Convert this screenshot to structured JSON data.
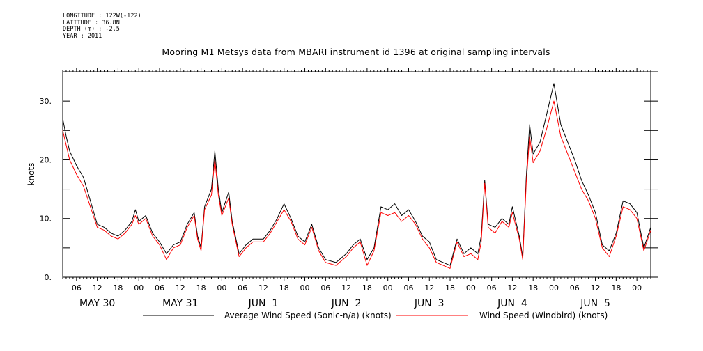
{
  "meta": {
    "longitude": "LONGITUDE : 122W(-122)",
    "latitude": "LATITUDE : 36.8N",
    "depth": "DEPTH (m) : -2.5",
    "year": "YEAR : 2011"
  },
  "chart_data": {
    "type": "line",
    "title": "Mooring M1 Metsys data from MBARI instrument id 1396 at original sampling intervals",
    "ylabel": "knots",
    "xlabel": "",
    "ylim": [
      0,
      35
    ],
    "xlim": [
      "2011-05-30 02:00",
      "2011-06-06 04:00"
    ],
    "yticks": [
      0,
      10,
      20,
      30
    ],
    "ytick_labels": [
      "0.",
      "10.",
      "20.",
      "30."
    ],
    "hour_ticks": [
      {
        "t": "2011-05-30 06:00",
        "label": "06"
      },
      {
        "t": "2011-05-30 12:00",
        "label": "12"
      },
      {
        "t": "2011-05-30 18:00",
        "label": "18"
      },
      {
        "t": "2011-05-31 00:00",
        "label": "00"
      },
      {
        "t": "2011-05-31 06:00",
        "label": "06"
      },
      {
        "t": "2011-05-31 12:00",
        "label": "12"
      },
      {
        "t": "2011-05-31 18:00",
        "label": "18"
      },
      {
        "t": "2011-06-01 00:00",
        "label": "00"
      },
      {
        "t": "2011-06-01 06:00",
        "label": "06"
      },
      {
        "t": "2011-06-01 12:00",
        "label": "12"
      },
      {
        "t": "2011-06-01 18:00",
        "label": "18"
      },
      {
        "t": "2011-06-02 00:00",
        "label": "00"
      },
      {
        "t": "2011-06-02 06:00",
        "label": "06"
      },
      {
        "t": "2011-06-02 12:00",
        "label": "12"
      },
      {
        "t": "2011-06-02 18:00",
        "label": "18"
      },
      {
        "t": "2011-06-03 00:00",
        "label": "00"
      },
      {
        "t": "2011-06-03 06:00",
        "label": "06"
      },
      {
        "t": "2011-06-03 12:00",
        "label": "12"
      },
      {
        "t": "2011-06-03 18:00",
        "label": "18"
      },
      {
        "t": "2011-06-04 00:00",
        "label": "00"
      },
      {
        "t": "2011-06-04 06:00",
        "label": "06"
      },
      {
        "t": "2011-06-04 12:00",
        "label": "12"
      },
      {
        "t": "2011-06-04 18:00",
        "label": "18"
      },
      {
        "t": "2011-06-05 00:00",
        "label": "00"
      },
      {
        "t": "2011-06-05 06:00",
        "label": "06"
      },
      {
        "t": "2011-06-05 12:00",
        "label": "12"
      },
      {
        "t": "2011-06-05 18:00",
        "label": "18"
      },
      {
        "t": "2011-06-06 00:00",
        "label": "00"
      }
    ],
    "day_labels": [
      {
        "t": "2011-05-30 12:00",
        "label": "MAY 30"
      },
      {
        "t": "2011-05-31 12:00",
        "label": "MAY 31"
      },
      {
        "t": "2011-06-01 12:00",
        "label": "JUN  1"
      },
      {
        "t": "2011-06-02 12:00",
        "label": "JUN  2"
      },
      {
        "t": "2011-06-03 12:00",
        "label": "JUN  3"
      },
      {
        "t": "2011-06-04 12:00",
        "label": "JUN  4"
      },
      {
        "t": "2011-06-05 12:00",
        "label": "JUN  5"
      }
    ],
    "grid": false,
    "legend": "bottom",
    "series": [
      {
        "name": "Average Wind Speed (Sonic-n/a) (knots)",
        "color": "#000000",
        "points": [
          [
            "2011-05-30 02:00",
            27.0
          ],
          [
            "2011-05-30 03:00",
            24.0
          ],
          [
            "2011-05-30 04:00",
            21.5
          ],
          [
            "2011-05-30 06:00",
            19.0
          ],
          [
            "2011-05-30 08:00",
            17.0
          ],
          [
            "2011-05-30 10:00",
            13.0
          ],
          [
            "2011-05-30 12:00",
            9.0
          ],
          [
            "2011-05-30 14:00",
            8.5
          ],
          [
            "2011-05-30 16:00",
            7.5
          ],
          [
            "2011-05-30 18:00",
            7.0
          ],
          [
            "2011-05-30 20:00",
            8.0
          ],
          [
            "2011-05-30 22:00",
            9.5
          ],
          [
            "2011-05-30 23:00",
            11.5
          ],
          [
            "2011-05-31 00:00",
            9.5
          ],
          [
            "2011-05-31 02:00",
            10.5
          ],
          [
            "2011-05-31 04:00",
            7.5
          ],
          [
            "2011-05-31 06:00",
            6.0
          ],
          [
            "2011-05-31 08:00",
            4.0
          ],
          [
            "2011-05-31 10:00",
            5.5
          ],
          [
            "2011-05-31 12:00",
            6.0
          ],
          [
            "2011-05-31 14:00",
            9.0
          ],
          [
            "2011-05-31 16:00",
            11.0
          ],
          [
            "2011-05-31 17:00",
            7.0
          ],
          [
            "2011-05-31 18:00",
            5.0
          ],
          [
            "2011-05-31 19:00",
            12.0
          ],
          [
            "2011-05-31 21:00",
            15.0
          ],
          [
            "2011-05-31 22:00",
            21.5
          ],
          [
            "2011-05-31 23:00",
            15.0
          ],
          [
            "2011-06-01 00:00",
            11.0
          ],
          [
            "2011-06-01 02:00",
            14.5
          ],
          [
            "2011-06-01 03:00",
            9.5
          ],
          [
            "2011-06-01 05:00",
            4.0
          ],
          [
            "2011-06-01 07:00",
            5.5
          ],
          [
            "2011-06-01 09:00",
            6.5
          ],
          [
            "2011-06-01 12:00",
            6.5
          ],
          [
            "2011-06-01 14:00",
            8.0
          ],
          [
            "2011-06-01 16:00",
            10.0
          ],
          [
            "2011-06-01 18:00",
            12.5
          ],
          [
            "2011-06-01 20:00",
            10.0
          ],
          [
            "2011-06-01 22:00",
            7.0
          ],
          [
            "2011-06-02 00:00",
            6.0
          ],
          [
            "2011-06-02 02:00",
            9.0
          ],
          [
            "2011-06-02 04:00",
            5.0
          ],
          [
            "2011-06-02 06:00",
            3.0
          ],
          [
            "2011-06-02 09:00",
            2.5
          ],
          [
            "2011-06-02 12:00",
            4.0
          ],
          [
            "2011-06-02 14:00",
            5.5
          ],
          [
            "2011-06-02 16:00",
            6.5
          ],
          [
            "2011-06-02 18:00",
            3.0
          ],
          [
            "2011-06-02 20:00",
            5.0
          ],
          [
            "2011-06-02 22:00",
            12.0
          ],
          [
            "2011-06-03 00:00",
            11.5
          ],
          [
            "2011-06-03 02:00",
            12.5
          ],
          [
            "2011-06-03 04:00",
            10.5
          ],
          [
            "2011-06-03 06:00",
            11.5
          ],
          [
            "2011-06-03 08:00",
            9.5
          ],
          [
            "2011-06-03 10:00",
            7.0
          ],
          [
            "2011-06-03 12:00",
            6.0
          ],
          [
            "2011-06-03 14:00",
            3.0
          ],
          [
            "2011-06-03 16:00",
            2.5
          ],
          [
            "2011-06-03 18:00",
            2.0
          ],
          [
            "2011-06-03 20:00",
            6.5
          ],
          [
            "2011-06-03 22:00",
            4.0
          ],
          [
            "2011-06-04 00:00",
            5.0
          ],
          [
            "2011-06-04 02:00",
            4.0
          ],
          [
            "2011-06-04 03:00",
            7.0
          ],
          [
            "2011-06-04 04:00",
            16.5
          ],
          [
            "2011-06-04 05:00",
            9.0
          ],
          [
            "2011-06-04 07:00",
            8.5
          ],
          [
            "2011-06-04 09:00",
            10.0
          ],
          [
            "2011-06-04 11:00",
            9.0
          ],
          [
            "2011-06-04 12:00",
            12.0
          ],
          [
            "2011-06-04 14:00",
            7.0
          ],
          [
            "2011-06-04 15:00",
            3.5
          ],
          [
            "2011-06-04 16:00",
            17.0
          ],
          [
            "2011-06-04 17:00",
            26.0
          ],
          [
            "2011-06-04 18:00",
            21.0
          ],
          [
            "2011-06-04 20:00",
            23.0
          ],
          [
            "2011-06-04 22:00",
            28.0
          ],
          [
            "2011-06-05 00:00",
            33.0
          ],
          [
            "2011-06-05 02:00",
            26.0
          ],
          [
            "2011-06-05 04:00",
            23.0
          ],
          [
            "2011-06-05 06:00",
            20.0
          ],
          [
            "2011-06-05 08:00",
            16.5
          ],
          [
            "2011-06-05 10:00",
            14.0
          ],
          [
            "2011-06-05 12:00",
            11.0
          ],
          [
            "2011-06-05 14:00",
            5.5
          ],
          [
            "2011-06-05 16:00",
            4.5
          ],
          [
            "2011-06-05 18:00",
            7.5
          ],
          [
            "2011-06-05 20:00",
            13.0
          ],
          [
            "2011-06-05 22:00",
            12.5
          ],
          [
            "2011-06-06 00:00",
            11.0
          ],
          [
            "2011-06-06 02:00",
            5.0
          ],
          [
            "2011-06-06 04:00",
            8.5
          ]
        ]
      },
      {
        "name": "Wind Speed (Windbird) (knots)",
        "color": "#ff0000",
        "points": [
          [
            "2011-05-30 02:00",
            25.0
          ],
          [
            "2011-05-30 03:00",
            22.5
          ],
          [
            "2011-05-30 04:00",
            20.0
          ],
          [
            "2011-05-30 06:00",
            17.5
          ],
          [
            "2011-05-30 08:00",
            15.5
          ],
          [
            "2011-05-30 10:00",
            12.0
          ],
          [
            "2011-05-30 12:00",
            8.5
          ],
          [
            "2011-05-30 14:00",
            8.0
          ],
          [
            "2011-05-30 16:00",
            7.0
          ],
          [
            "2011-05-30 18:00",
            6.5
          ],
          [
            "2011-05-30 20:00",
            7.5
          ],
          [
            "2011-05-30 22:00",
            9.0
          ],
          [
            "2011-05-30 23:00",
            10.5
          ],
          [
            "2011-05-31 00:00",
            9.0
          ],
          [
            "2011-05-31 02:00",
            10.0
          ],
          [
            "2011-05-31 04:00",
            7.0
          ],
          [
            "2011-05-31 06:00",
            5.5
          ],
          [
            "2011-05-31 08:00",
            3.0
          ],
          [
            "2011-05-31 10:00",
            5.0
          ],
          [
            "2011-05-31 12:00",
            5.5
          ],
          [
            "2011-05-31 14:00",
            8.5
          ],
          [
            "2011-05-31 16:00",
            10.5
          ],
          [
            "2011-05-31 17:00",
            6.5
          ],
          [
            "2011-05-31 18:00",
            4.5
          ],
          [
            "2011-05-31 19:00",
            11.5
          ],
          [
            "2011-05-31 21:00",
            14.0
          ],
          [
            "2011-05-31 22:00",
            20.0
          ],
          [
            "2011-05-31 23:00",
            14.0
          ],
          [
            "2011-06-01 00:00",
            10.5
          ],
          [
            "2011-06-01 02:00",
            13.5
          ],
          [
            "2011-06-01 03:00",
            9.0
          ],
          [
            "2011-06-01 05:00",
            3.5
          ],
          [
            "2011-06-01 07:00",
            5.0
          ],
          [
            "2011-06-01 09:00",
            6.0
          ],
          [
            "2011-06-01 12:00",
            6.0
          ],
          [
            "2011-06-01 14:00",
            7.5
          ],
          [
            "2011-06-01 16:00",
            9.5
          ],
          [
            "2011-06-01 18:00",
            11.5
          ],
          [
            "2011-06-01 20:00",
            9.5
          ],
          [
            "2011-06-01 22:00",
            6.5
          ],
          [
            "2011-06-02 00:00",
            5.5
          ],
          [
            "2011-06-02 02:00",
            8.5
          ],
          [
            "2011-06-02 04:00",
            4.5
          ],
          [
            "2011-06-02 06:00",
            2.5
          ],
          [
            "2011-06-02 09:00",
            2.0
          ],
          [
            "2011-06-02 12:00",
            3.5
          ],
          [
            "2011-06-02 14:00",
            5.0
          ],
          [
            "2011-06-02 16:00",
            6.0
          ],
          [
            "2011-06-02 18:00",
            2.0
          ],
          [
            "2011-06-02 20:00",
            4.5
          ],
          [
            "2011-06-02 22:00",
            11.0
          ],
          [
            "2011-06-03 00:00",
            10.5
          ],
          [
            "2011-06-03 02:00",
            11.0
          ],
          [
            "2011-06-03 04:00",
            9.5
          ],
          [
            "2011-06-03 06:00",
            10.5
          ],
          [
            "2011-06-03 08:00",
            9.0
          ],
          [
            "2011-06-03 10:00",
            6.5
          ],
          [
            "2011-06-03 12:00",
            5.0
          ],
          [
            "2011-06-03 14:00",
            2.5
          ],
          [
            "2011-06-03 16:00",
            2.0
          ],
          [
            "2011-06-03 18:00",
            1.5
          ],
          [
            "2011-06-03 20:00",
            6.0
          ],
          [
            "2011-06-03 22:00",
            3.5
          ],
          [
            "2011-06-04 00:00",
            4.0
          ],
          [
            "2011-06-04 02:00",
            3.0
          ],
          [
            "2011-06-04 03:00",
            6.0
          ],
          [
            "2011-06-04 04:00",
            16.0
          ],
          [
            "2011-06-04 05:00",
            8.5
          ],
          [
            "2011-06-04 07:00",
            7.5
          ],
          [
            "2011-06-04 09:00",
            9.5
          ],
          [
            "2011-06-04 11:00",
            8.5
          ],
          [
            "2011-06-04 12:00",
            11.0
          ],
          [
            "2011-06-04 14:00",
            6.5
          ],
          [
            "2011-06-04 15:00",
            3.0
          ],
          [
            "2011-06-04 16:00",
            16.0
          ],
          [
            "2011-06-04 17:00",
            24.0
          ],
          [
            "2011-06-04 18:00",
            19.5
          ],
          [
            "2011-06-04 20:00",
            21.5
          ],
          [
            "2011-06-04 22:00",
            25.5
          ],
          [
            "2011-06-05 00:00",
            30.0
          ],
          [
            "2011-06-05 02:00",
            24.0
          ],
          [
            "2011-06-05 04:00",
            21.0
          ],
          [
            "2011-06-05 06:00",
            18.0
          ],
          [
            "2011-06-05 08:00",
            15.0
          ],
          [
            "2011-06-05 10:00",
            13.0
          ],
          [
            "2011-06-05 12:00",
            10.0
          ],
          [
            "2011-06-05 14:00",
            5.0
          ],
          [
            "2011-06-05 16:00",
            3.5
          ],
          [
            "2011-06-05 18:00",
            7.0
          ],
          [
            "2011-06-05 20:00",
            12.0
          ],
          [
            "2011-06-05 22:00",
            11.5
          ],
          [
            "2011-06-06 00:00",
            10.0
          ],
          [
            "2011-06-06 02:00",
            4.5
          ],
          [
            "2011-06-06 04:00",
            8.0
          ]
        ]
      }
    ]
  }
}
